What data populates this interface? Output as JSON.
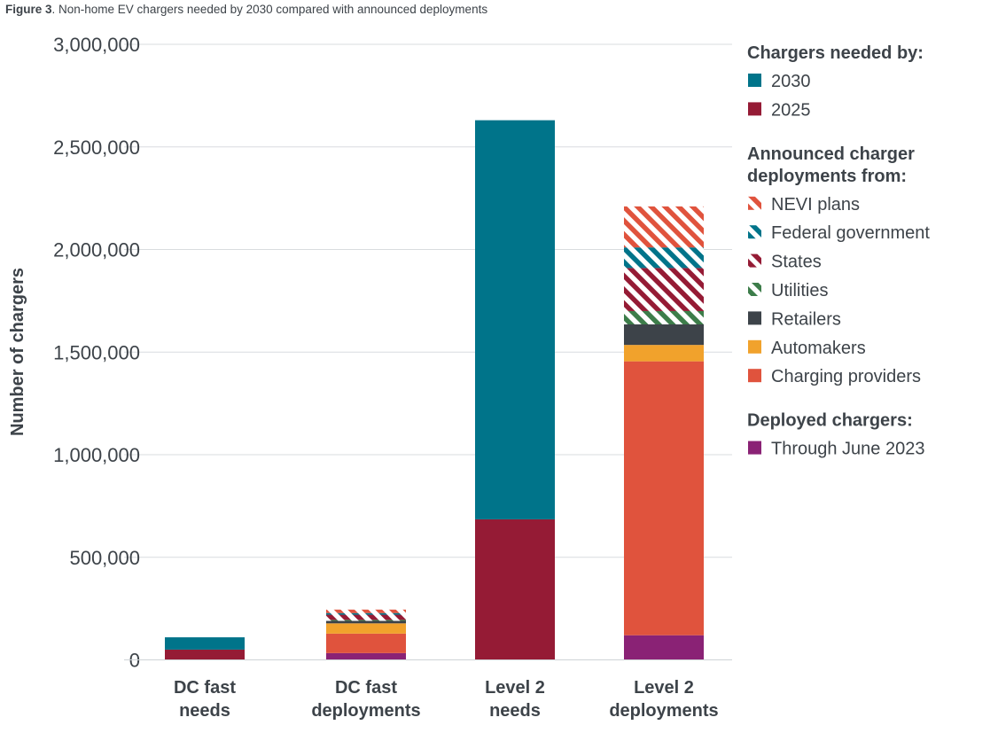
{
  "caption": {
    "label": "Figure 3",
    "text": ". Non-home EV chargers needed by 2030 compared with announced deployments"
  },
  "chart_data": {
    "type": "bar",
    "stacked": true,
    "ylabel": "Number of chargers",
    "ylim": [
      0,
      3000000
    ],
    "yticks": [
      "0",
      "500,000",
      "1,000,000",
      "1,500,000",
      "2,000,000",
      "2,500,000",
      "3,000,000"
    ],
    "ytick_values": [
      0,
      500000,
      1000000,
      1500000,
      2000000,
      2500000,
      3000000
    ],
    "grid": true,
    "legend_position": "right",
    "categories": [
      {
        "line1": "DC fast",
        "line2": "needs"
      },
      {
        "line1": "DC fast",
        "line2": "deployments"
      },
      {
        "line1": "Level 2",
        "line2": "needs"
      },
      {
        "line1": "Level 2",
        "line2": "deployments"
      }
    ],
    "series": [
      {
        "name": "Through June 2023",
        "color": "#8a2275",
        "pattern": "solid",
        "values": [
          0,
          33000,
          0,
          120000
        ]
      },
      {
        "name": "Charging providers",
        "color": "#e0533d",
        "pattern": "solid",
        "values": [
          0,
          95000,
          0,
          1335000
        ]
      },
      {
        "name": "Automakers",
        "color": "#f1a22c",
        "pattern": "solid",
        "values": [
          0,
          50000,
          0,
          80000
        ]
      },
      {
        "name": "Retailers",
        "color": "#3d4349",
        "pattern": "solid",
        "values": [
          0,
          12000,
          0,
          100000
        ]
      },
      {
        "name": "Utilities",
        "color": "#3d7d4a",
        "pattern": "hatch",
        "values": [
          0,
          5000,
          0,
          65000
        ]
      },
      {
        "name": "States",
        "color": "#951b35",
        "pattern": "hatch",
        "values": [
          0,
          25000,
          0,
          210000
        ]
      },
      {
        "name": "Federal government",
        "color": "#00748a",
        "pattern": "hatch",
        "values": [
          0,
          8000,
          0,
          100000
        ]
      },
      {
        "name": "NEVI plans",
        "color": "#e0533d",
        "pattern": "hatch",
        "values": [
          0,
          17000,
          0,
          200000
        ]
      },
      {
        "name": "2025",
        "color": "#951b35",
        "pattern": "solid",
        "values": [
          50000,
          0,
          685000,
          0
        ]
      },
      {
        "name": "2030",
        "color": "#00748a",
        "pattern": "solid",
        "values": [
          60000,
          0,
          1945000,
          0
        ]
      }
    ]
  },
  "legend": {
    "groups": [
      {
        "heading_lines": [
          "Chargers needed by:"
        ],
        "items": [
          "2030",
          "2025"
        ]
      },
      {
        "heading_lines": [
          "Announced charger",
          "deployments from:"
        ],
        "items": [
          "NEVI plans",
          "Federal government",
          "States",
          "Utilities",
          "Retailers",
          "Automakers",
          "Charging providers"
        ]
      },
      {
        "heading_lines": [
          "Deployed chargers:"
        ],
        "items": [
          "Through June 2023"
        ]
      }
    ]
  }
}
